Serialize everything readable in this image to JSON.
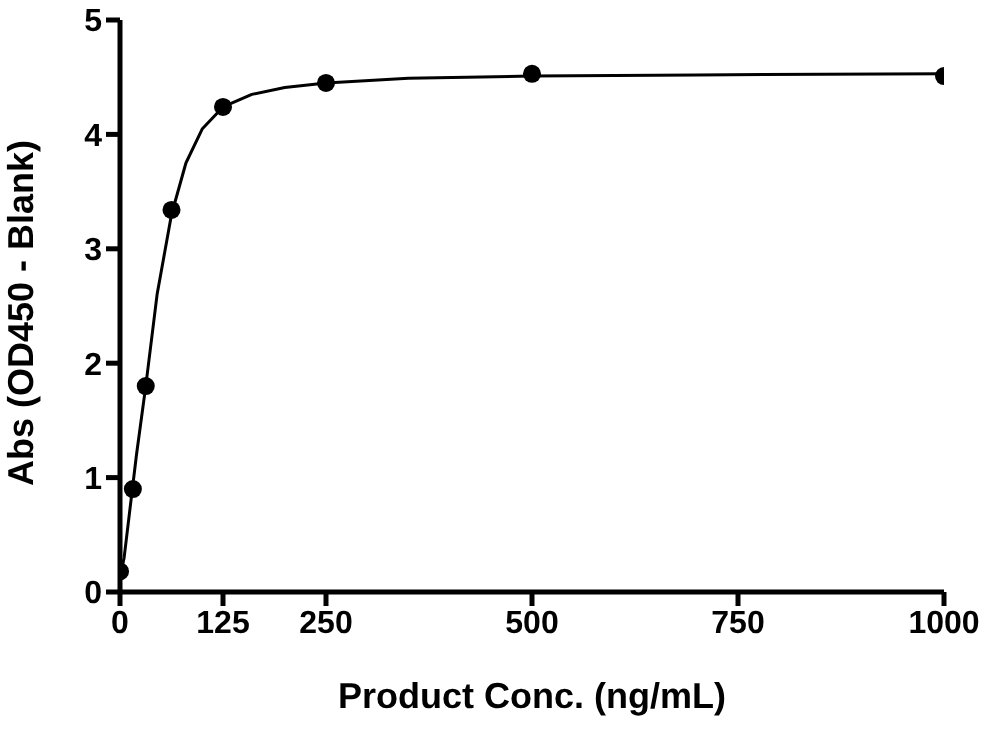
{
  "chart_data": {
    "type": "scatter",
    "xlabel": "Product Conc. (ng/mL)",
    "ylabel": "Abs (OD450 - Blank)",
    "x": [
      0,
      15.625,
      31.25,
      62.5,
      125,
      250,
      500,
      1000
    ],
    "series": [
      {
        "color": "#000000",
        "marker": "circle",
        "values": [
          0.18,
          0.9,
          1.8,
          3.34,
          4.24,
          4.45,
          4.53,
          4.51
        ]
      },
      {
        "type": "line",
        "color": "#000000",
        "marker": "none",
        "x": [
          0,
          5,
          10,
          20,
          31.25,
          45,
          62.5,
          80,
          100,
          125,
          160,
          200,
          250,
          350,
          500,
          700,
          1000
        ],
        "values": [
          0.12,
          0.3,
          0.6,
          1.2,
          1.8,
          2.6,
          3.3,
          3.75,
          4.05,
          4.24,
          4.35,
          4.41,
          4.45,
          4.49,
          4.51,
          4.52,
          4.53
        ]
      }
    ],
    "xlim": [
      0,
      1000
    ],
    "xticks": [
      0,
      125,
      250,
      500,
      750,
      1000
    ],
    "ylim": [
      0,
      5
    ],
    "yticks": [
      0,
      1,
      2,
      3,
      4,
      5
    ],
    "grid": false
  }
}
